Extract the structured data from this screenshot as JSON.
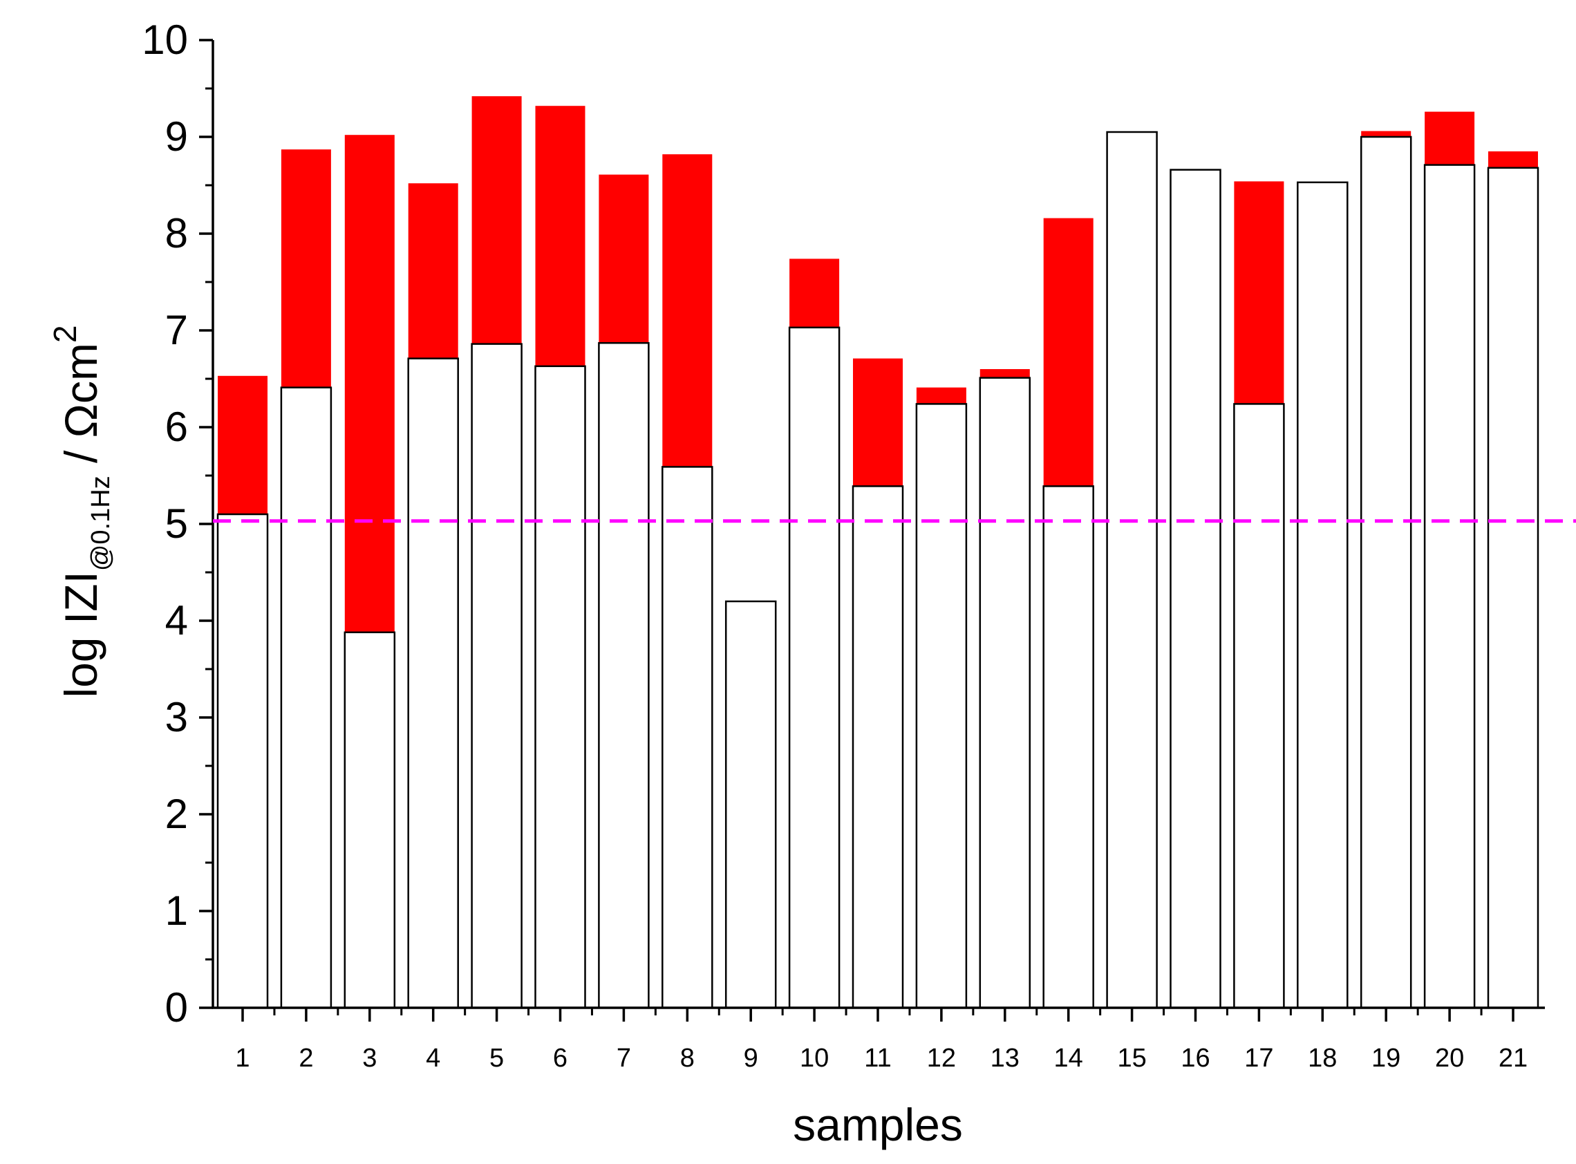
{
  "chart_data": {
    "type": "bar",
    "stacking": "overlay",
    "title": "",
    "xlabel": "samples",
    "ylabel": {
      "main": "log IZI",
      "subscript": "@0.1Hz",
      "unit": " / Ωcm",
      "superscript": "2"
    },
    "ylim": [
      0,
      10
    ],
    "yticks": [
      "0",
      "1",
      "2",
      "3",
      "4",
      "5",
      "6",
      "7",
      "8",
      "9",
      "10"
    ],
    "categories": [
      "1",
      "2",
      "3",
      "4",
      "5",
      "6",
      "7",
      "8",
      "9",
      "10",
      "11",
      "12",
      "13",
      "14",
      "15",
      "16",
      "17",
      "18",
      "19",
      "20",
      "21"
    ],
    "series": [
      {
        "name": "upper value",
        "color": "#ff0000",
        "values": [
          6.53,
          8.87,
          9.02,
          8.52,
          9.42,
          9.32,
          8.61,
          8.82,
          4.2,
          7.74,
          6.71,
          6.41,
          6.6,
          8.16,
          9.05,
          8.66,
          8.54,
          8.53,
          9.06,
          9.26,
          8.85
        ]
      },
      {
        "name": "lower value",
        "color": "#ffffff",
        "values": [
          5.1,
          6.41,
          3.88,
          6.71,
          6.86,
          6.63,
          6.87,
          5.59,
          4.2,
          7.03,
          5.39,
          6.24,
          6.51,
          5.39,
          9.05,
          8.66,
          6.24,
          8.53,
          9.0,
          8.71,
          8.68
        ]
      }
    ],
    "reference_line": {
      "y": 5.03,
      "color": "#ff00ff",
      "style": "dashed"
    },
    "grid": false,
    "legend": "none"
  }
}
